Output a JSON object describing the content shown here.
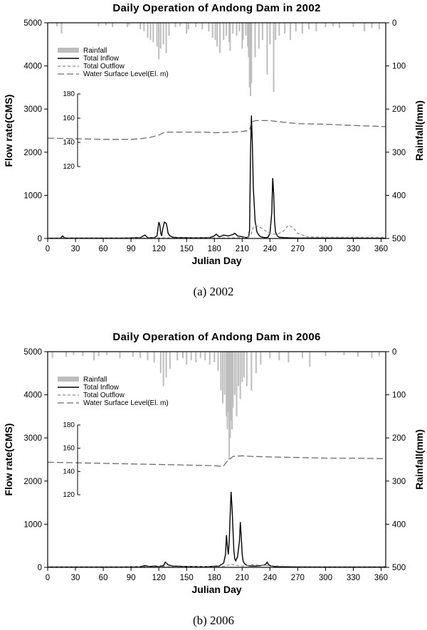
{
  "chart_data": [
    {
      "panel": "a",
      "type": "line",
      "title": "Daily Operation of Andong Dam in 2002",
      "caption": "(a)  2002",
      "xlabel": "Julian Day",
      "ylabel_left": "Flow rate(CMS)",
      "ylabel_right": "Rainfall(mm)",
      "xlim": [
        0,
        365
      ],
      "xticks": [
        "0",
        "30",
        "60",
        "90",
        "120",
        "150",
        "180",
        "210",
        "240",
        "270",
        "300",
        "330",
        "360"
      ],
      "ylim_left": [
        0,
        5000
      ],
      "yticks_left": [
        "0",
        "1000",
        "2000",
        "3000",
        "4000",
        "5000"
      ],
      "ylim_right_inverted": [
        0,
        500
      ],
      "yticks_right": [
        "0",
        "100",
        "200",
        "300",
        "400",
        "500"
      ],
      "level_axis": {
        "range": [
          120,
          180
        ],
        "ticks": [
          "120",
          "140",
          "160",
          "180"
        ]
      },
      "legend": [
        "Rainfall",
        "Total Inflow",
        "Total Outflow",
        "Water Surface Level(El. m)"
      ],
      "series": [
        {
          "name": "Total Inflow",
          "style": "solid",
          "x": [
            0,
            14,
            16,
            18,
            20,
            40,
            60,
            80,
            100,
            105,
            106,
            108,
            110,
            115,
            118,
            120,
            121,
            122,
            123,
            124,
            126,
            128,
            129,
            130,
            132,
            135,
            140,
            160,
            175,
            180,
            182,
            184,
            186,
            188,
            190,
            195,
            200,
            202,
            205,
            210,
            212,
            215,
            217,
            218,
            219,
            220,
            221,
            222,
            224,
            226,
            228,
            230,
            232,
            235,
            238,
            240,
            242,
            243,
            244,
            245,
            246,
            248,
            250,
            255,
            260,
            270,
            300,
            330,
            365
          ],
          "values": [
            5,
            10,
            60,
            20,
            10,
            8,
            10,
            10,
            20,
            80,
            60,
            20,
            15,
            20,
            60,
            380,
            320,
            120,
            60,
            200,
            380,
            350,
            250,
            120,
            60,
            30,
            20,
            15,
            20,
            60,
            100,
            60,
            40,
            60,
            80,
            60,
            90,
            120,
            60,
            40,
            30,
            20,
            40,
            200,
            2000,
            2850,
            2200,
            1200,
            400,
            150,
            80,
            40,
            30,
            20,
            30,
            120,
            600,
            1400,
            1050,
            400,
            150,
            60,
            30,
            20,
            15,
            10,
            10,
            8,
            5
          ]
        },
        {
          "name": "Total Outflow",
          "style": "dashed",
          "x": [
            0,
            20,
            60,
            100,
            120,
            130,
            150,
            180,
            200,
            210,
            215,
            218,
            220,
            222,
            225,
            230,
            235,
            240,
            245,
            250,
            255,
            258,
            260,
            262,
            265,
            270,
            280,
            300,
            330,
            365
          ],
          "values": [
            10,
            10,
            10,
            10,
            10,
            10,
            10,
            10,
            15,
            20,
            30,
            60,
            120,
            260,
            300,
            250,
            180,
            120,
            100,
            120,
            180,
            260,
            300,
            290,
            250,
            120,
            40,
            30,
            30,
            30
          ]
        },
        {
          "name": "Water Surface Level(El. m)",
          "style": "long-dash",
          "axis": "level",
          "x": [
            0,
            30,
            60,
            90,
            100,
            110,
            120,
            125,
            130,
            150,
            170,
            180,
            200,
            210,
            215,
            218,
            220,
            225,
            230,
            240,
            245,
            250,
            270,
            300,
            330,
            365
          ],
          "values": [
            143.5,
            143,
            142.5,
            142.5,
            143,
            144,
            146,
            148,
            148.5,
            148.5,
            148.5,
            148,
            148.5,
            149,
            149.5,
            150,
            157,
            158,
            158,
            158,
            157.5,
            157,
            155.5,
            155,
            154,
            153
          ]
        }
      ],
      "rainfall": {
        "x": [
          10,
          15,
          55,
          63,
          70,
          86,
          88,
          100,
          104,
          108,
          111,
          114,
          118,
          120,
          122,
          125,
          128,
          131,
          138,
          143,
          150,
          152,
          160,
          167,
          174,
          178,
          181,
          183,
          186,
          190,
          193,
          196,
          197,
          200,
          204,
          207,
          210,
          211,
          214,
          216,
          217,
          218,
          219,
          220,
          224,
          228,
          232,
          237,
          240,
          244,
          246,
          250,
          256,
          262,
          268,
          275,
          282,
          290,
          300,
          308,
          315,
          330,
          342,
          350,
          358
        ],
        "values": [
          8,
          25,
          8,
          6,
          10,
          10,
          6,
          15,
          20,
          35,
          40,
          45,
          55,
          85,
          60,
          50,
          70,
          30,
          10,
          8,
          25,
          15,
          10,
          15,
          20,
          35,
          40,
          55,
          70,
          40,
          30,
          45,
          65,
          25,
          30,
          20,
          60,
          40,
          30,
          55,
          80,
          150,
          170,
          140,
          80,
          60,
          40,
          120,
          50,
          160,
          40,
          30,
          25,
          40,
          20,
          25,
          15,
          20,
          10,
          8,
          12,
          10,
          20,
          12,
          15
        ]
      }
    },
    {
      "panel": "b",
      "type": "line",
      "title": "Daily Operation of Andong Dam in 2006",
      "caption": "(b)  2006",
      "xlabel": "Julian Day",
      "ylabel_left": "Flow rate(CMS)",
      "ylabel_right": "Rainfall(mm)",
      "xlim": [
        0,
        365
      ],
      "xticks": [
        "0",
        "30",
        "60",
        "90",
        "120",
        "150",
        "180",
        "210",
        "240",
        "270",
        "300",
        "330",
        "360"
      ],
      "ylim_left": [
        0,
        5000
      ],
      "yticks_left": [
        "0",
        "1000",
        "2000",
        "3000",
        "4000",
        "5000"
      ],
      "ylim_right_inverted": [
        0,
        500
      ],
      "yticks_right": [
        "0",
        "100",
        "200",
        "300",
        "400",
        "500"
      ],
      "level_axis": {
        "range": [
          120,
          180
        ],
        "ticks": [
          "120",
          "140",
          "160",
          "180"
        ]
      },
      "legend": [
        "Rainfall",
        "Total Inflow",
        "Total Outflow",
        "Water Surface Level(El. m)"
      ],
      "series": [
        {
          "name": "Total Inflow",
          "style": "solid",
          "x": [
            0,
            20,
            40,
            60,
            80,
            100,
            105,
            110,
            115,
            120,
            125,
            127,
            128,
            130,
            135,
            150,
            170,
            185,
            190,
            192,
            193,
            194,
            195,
            196,
            197,
            198,
            199,
            200,
            201,
            202,
            203,
            205,
            207,
            208,
            209,
            210,
            211,
            212,
            214,
            216,
            220,
            225,
            230,
            235,
            237,
            238,
            240,
            245,
            250,
            270,
            300,
            330,
            365
          ],
          "values": [
            10,
            8,
            8,
            8,
            10,
            15,
            40,
            20,
            30,
            20,
            40,
            120,
            100,
            60,
            30,
            20,
            15,
            30,
            100,
            300,
            750,
            500,
            300,
            600,
            1200,
            1750,
            1400,
            900,
            400,
            200,
            150,
            250,
            600,
            1050,
            700,
            300,
            150,
            100,
            60,
            40,
            30,
            30,
            40,
            60,
            120,
            80,
            40,
            20,
            15,
            10,
            10,
            10,
            8
          ]
        },
        {
          "name": "Total Outflow",
          "style": "dashed",
          "x": [
            0,
            30,
            60,
            90,
            120,
            150,
            180,
            190,
            193,
            196,
            198,
            200,
            205,
            210,
            215,
            220,
            230,
            240,
            250,
            270,
            300,
            330,
            365
          ],
          "values": [
            15,
            15,
            15,
            15,
            15,
            15,
            15,
            20,
            40,
            60,
            80,
            60,
            40,
            30,
            40,
            60,
            50,
            40,
            30,
            20,
            15,
            15,
            15
          ]
        },
        {
          "name": "Water Surface Level(El. m)",
          "style": "long-dash",
          "axis": "level",
          "x": [
            0,
            30,
            60,
            90,
            120,
            150,
            180,
            187,
            190,
            192,
            195,
            198,
            200,
            210,
            220,
            240,
            270,
            300,
            330,
            365
          ],
          "values": [
            148,
            147.5,
            147,
            146.5,
            146,
            145.5,
            145,
            144.5,
            145,
            147,
            150,
            151.5,
            153,
            153.5,
            153,
            152.5,
            152,
            151.5,
            151.5,
            151
          ]
        }
      ],
      "rainfall": {
        "x": [
          5,
          20,
          28,
          38,
          50,
          55,
          64,
          78,
          92,
          100,
          108,
          115,
          122,
          125,
          128,
          132,
          140,
          146,
          150,
          155,
          160,
          165,
          170,
          175,
          180,
          184,
          187,
          189,
          191,
          193,
          194,
          195,
          196,
          197,
          198,
          199,
          200,
          202,
          204,
          206,
          208,
          210,
          212,
          215,
          220,
          225,
          230,
          240,
          250,
          260,
          275,
          283,
          300,
          320,
          335,
          350,
          358
        ],
        "values": [
          15,
          12,
          8,
          10,
          20,
          10,
          8,
          15,
          12,
          15,
          20,
          25,
          50,
          80,
          60,
          40,
          20,
          15,
          30,
          20,
          25,
          15,
          20,
          30,
          25,
          45,
          90,
          120,
          100,
          150,
          180,
          140,
          250,
          200,
          160,
          180,
          130,
          100,
          150,
          80,
          110,
          70,
          60,
          80,
          90,
          50,
          30,
          15,
          20,
          25,
          15,
          35,
          10,
          8,
          12,
          15,
          10
        ]
      }
    }
  ]
}
